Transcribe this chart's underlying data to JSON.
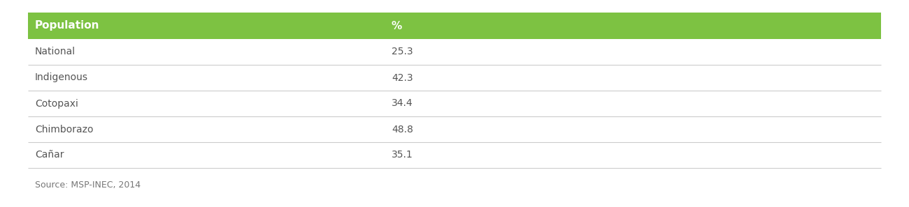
{
  "header": [
    "Population",
    "%"
  ],
  "rows": [
    [
      "National",
      "25.3"
    ],
    [
      "Indigenous",
      "42.3"
    ],
    [
      "Cotopaxi",
      "34.4"
    ],
    [
      "Chimborazo",
      "48.8"
    ],
    [
      "Cañar",
      "35.1"
    ]
  ],
  "header_bg_color": "#7DC242",
  "header_text_color": "#FFFFFF",
  "row_text_color": "#555555",
  "separator_color": "#CCCCCC",
  "bg_color": "#FFFFFF",
  "source_text": "Source: MSP-INEC, 2014",
  "source_color": "#777777",
  "header_fontsize": 11,
  "row_fontsize": 10,
  "source_fontsize": 9
}
